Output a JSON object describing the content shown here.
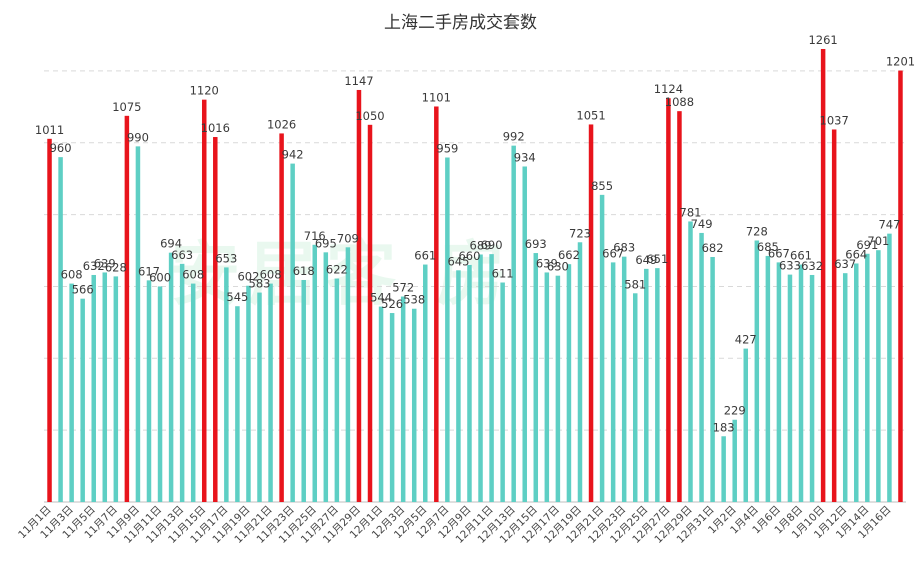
{
  "chart_data": {
    "type": "bar",
    "title": "上海二手房成交套数",
    "watermark": "安居客 房",
    "xlabel": "",
    "ylabel": "",
    "ylim": [
      0,
      1300
    ],
    "colors": {
      "normal": "#5ecfc4",
      "highlight": "#e8141c"
    },
    "categories": [
      "11月1日",
      "11月2日",
      "11月3日",
      "11月4日",
      "11月5日",
      "11月6日",
      "11月7日",
      "11月8日",
      "11月9日",
      "11月10日",
      "11月11日",
      "11月12日",
      "11月13日",
      "11月14日",
      "11月15日",
      "11月16日",
      "11月17日",
      "11月18日",
      "11月19日",
      "11月20日",
      "11月21日",
      "11月22日",
      "11月23日",
      "11月24日",
      "11月25日",
      "11月26日",
      "11月27日",
      "11月28日",
      "11月29日",
      "11月30日",
      "12月1日",
      "12月2日",
      "12月3日",
      "12月4日",
      "12月5日",
      "12月6日",
      "12月7日",
      "12月8日",
      "12月9日",
      "12月10日",
      "12月11日",
      "12月12日",
      "12月13日",
      "12月14日",
      "12月15日",
      "12月16日",
      "12月17日",
      "12月18日",
      "12月19日",
      "12月20日",
      "12月21日",
      "12月22日",
      "12月23日",
      "12月24日",
      "12月25日",
      "12月26日",
      "12月27日",
      "12月28日",
      "12月29日",
      "12月30日",
      "12月31日",
      "1月1日",
      "1月2日",
      "1月3日",
      "1月4日",
      "1月5日",
      "1月6日",
      "1月7日",
      "1月8日",
      "1月9日",
      "1月10日",
      "1月11日",
      "1月12日",
      "1月13日",
      "1月14日",
      "1月15日",
      "1月16日",
      "1月17日"
    ],
    "values": [
      1011,
      960,
      608,
      566,
      632,
      639,
      628,
      1075,
      990,
      617,
      600,
      694,
      663,
      608,
      1120,
      1016,
      653,
      545,
      602,
      583,
      608,
      1026,
      942,
      618,
      716,
      695,
      622,
      709,
      1147,
      1050,
      544,
      526,
      572,
      538,
      661,
      1101,
      959,
      645,
      660,
      689,
      690,
      611,
      992,
      934,
      693,
      639,
      630,
      662,
      723,
      1051,
      855,
      667,
      683,
      581,
      649,
      651,
      1124,
      1088,
      781,
      749,
      682,
      183,
      229,
      427,
      728,
      685,
      667,
      633,
      661,
      632,
      1261,
      1037,
      637,
      664,
      691,
      701,
      747,
      1201
    ],
    "highlight": [
      true,
      false,
      false,
      false,
      false,
      false,
      false,
      true,
      false,
      false,
      false,
      false,
      false,
      false,
      true,
      true,
      false,
      false,
      false,
      false,
      false,
      true,
      false,
      false,
      false,
      false,
      false,
      false,
      true,
      true,
      false,
      false,
      false,
      false,
      false,
      true,
      false,
      false,
      false,
      false,
      false,
      false,
      false,
      false,
      false,
      false,
      false,
      false,
      false,
      true,
      false,
      false,
      false,
      false,
      false,
      false,
      true,
      true,
      false,
      false,
      false,
      false,
      false,
      false,
      false,
      false,
      false,
      false,
      false,
      false,
      true,
      true,
      false,
      false,
      false,
      false,
      false,
      true
    ],
    "tick_labels": [
      "11月1日",
      "11月3日",
      "11月5日",
      "11月7日",
      "11月9日",
      "11月11日",
      "11月13日",
      "11月15日",
      "11月17日",
      "11月19日",
      "11月21日",
      "11月23日",
      "11月25日",
      "11月27日",
      "11月29日",
      "12月1日",
      "12月3日",
      "12月5日",
      "12月7日",
      "12月9日",
      "12月11日",
      "12月13日",
      "12月15日",
      "12月17日",
      "12月19日",
      "12月21日",
      "12月23日",
      "12月25日",
      "12月27日",
      "12月29日",
      "12月31日",
      "1月2日",
      "1月4日",
      "1月6日",
      "1月8日",
      "1月10日",
      "1月12日",
      "1月14日",
      "1月16日"
    ],
    "grid": true,
    "legend": "none"
  }
}
